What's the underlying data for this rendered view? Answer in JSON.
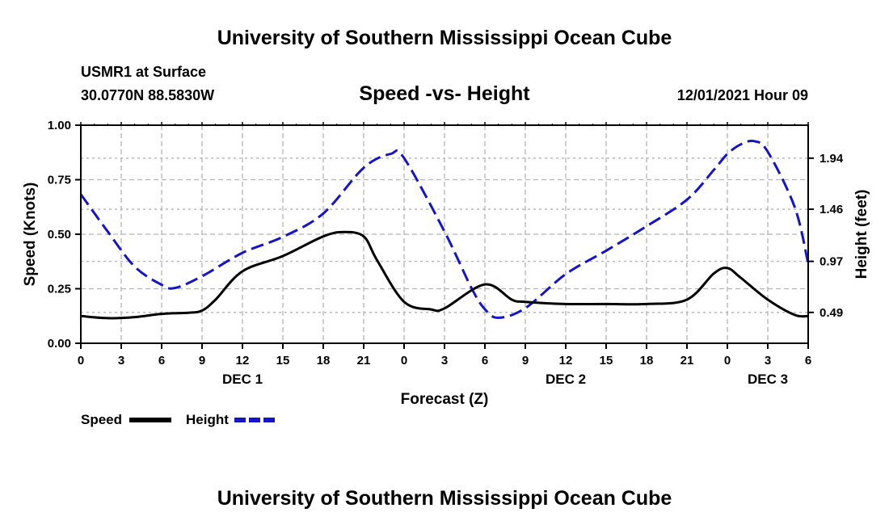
{
  "page": {
    "header_title": "University of Southern Mississippi Ocean Cube",
    "footer_title": "University of Southern Mississippi Ocean Cube"
  },
  "chart_data": {
    "type": "line",
    "title": "Speed -vs- Height",
    "station": "USMR1 at Surface",
    "location": "30.0770N  88.5830W",
    "date_label": "12/01/2021 Hour 09",
    "xlabel": "Forecast (Z)",
    "ylabel_left": "Speed (Knots)",
    "ylabel_right": "Height (feet)",
    "grid": true,
    "x_range": [
      0,
      54
    ],
    "x_ticks": [
      0,
      3,
      6,
      9,
      12,
      15,
      18,
      21,
      24,
      27,
      30,
      33,
      36,
      39,
      42,
      45,
      48,
      51,
      54
    ],
    "x_tick_labels": [
      "0",
      "3",
      "6",
      "9",
      "12",
      "15",
      "18",
      "21",
      "0",
      "3",
      "6",
      "9",
      "12",
      "15",
      "18",
      "21",
      "0",
      "3",
      "6"
    ],
    "day_labels": [
      {
        "label": "DEC 1",
        "x": 12
      },
      {
        "label": "DEC 2",
        "x": 36
      },
      {
        "label": "DEC 3",
        "x": 51
      }
    ],
    "y_left": {
      "range": [
        0,
        1
      ],
      "ticks": [
        0,
        0.25,
        0.5,
        0.75,
        1.0
      ],
      "tick_labels": [
        "0.00",
        "0.25",
        "0.50",
        "0.75",
        "1.00"
      ]
    },
    "y_right": {
      "range": [
        0.2,
        2.25
      ],
      "ticks": [
        0.49,
        0.97,
        1.46,
        1.94
      ],
      "tick_labels": [
        "0.49",
        "0.97",
        "1.46",
        "1.94"
      ]
    },
    "legend": [
      {
        "label": "Speed",
        "color": "#000000",
        "style": "solid"
      },
      {
        "label": "Height",
        "color": "#1414c8",
        "style": "dashed"
      }
    ],
    "series": [
      {
        "name": "Speed",
        "axis": "left",
        "color": "#000000",
        "dash": false,
        "x": [
          0,
          2,
          4,
          6,
          8,
          9,
          10,
          12,
          15,
          18,
          19.5,
          21,
          22,
          24,
          26,
          27,
          30,
          32,
          33,
          36,
          39,
          42,
          45,
          47,
          48,
          49,
          51,
          53,
          54
        ],
        "y": [
          0.125,
          0.115,
          0.12,
          0.135,
          0.14,
          0.15,
          0.2,
          0.33,
          0.4,
          0.49,
          0.51,
          0.49,
          0.38,
          0.19,
          0.155,
          0.16,
          0.27,
          0.2,
          0.19,
          0.18,
          0.18,
          0.18,
          0.2,
          0.32,
          0.345,
          0.3,
          0.2,
          0.13,
          0.125
        ]
      },
      {
        "name": "Height",
        "axis": "right",
        "color": "#1414c8",
        "dash": true,
        "x": [
          0,
          2,
          4,
          6,
          7,
          9,
          12,
          15,
          18,
          21,
          23,
          24,
          27,
          29,
          30,
          31,
          33,
          36,
          39,
          42,
          45,
          47,
          48,
          49,
          50,
          51,
          53,
          54
        ],
        "y": [
          1.6,
          1.25,
          0.92,
          0.75,
          0.72,
          0.83,
          1.05,
          1.2,
          1.42,
          1.85,
          1.98,
          1.94,
          1.25,
          0.72,
          0.52,
          0.44,
          0.53,
          0.85,
          1.07,
          1.3,
          1.55,
          1.83,
          1.98,
          2.07,
          2.1,
          2.0,
          1.48,
          0.95
        ]
      }
    ]
  }
}
